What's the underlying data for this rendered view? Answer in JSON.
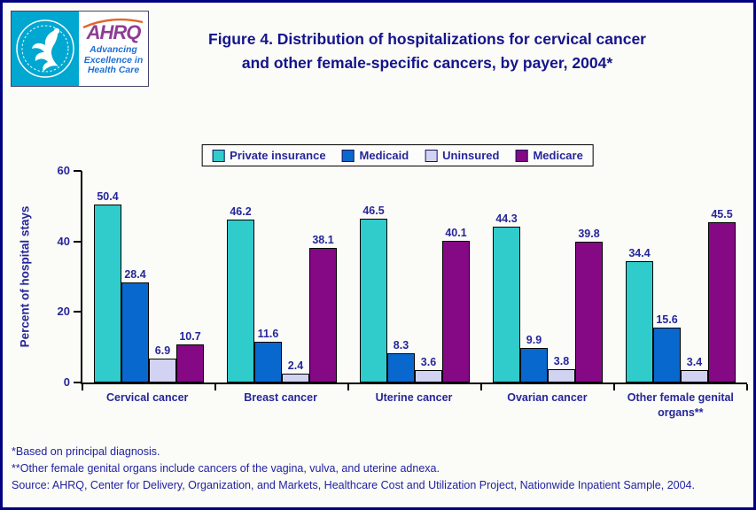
{
  "header": {
    "logo": {
      "acronym": "AHRQ",
      "tagline_line1": "Advancing",
      "tagline_line2": "Excellence in",
      "tagline_line3": "Health Care"
    },
    "title_line1": "Figure 4. Distribution of hospitalizations for cervical cancer",
    "title_line2": "and other female-specific cancers, by payer, 2004*"
  },
  "chart_data": {
    "type": "bar",
    "title": "Figure 4. Distribution of hospitalizations for cervical cancer and other female-specific cancers, by payer, 2004*",
    "xlabel": "",
    "ylabel": "Percent of hospital stays",
    "ylim": [
      0,
      60
    ],
    "yticks": [
      0,
      20,
      40,
      60
    ],
    "grid": false,
    "legend_position": "top",
    "categories": [
      "Cervical cancer",
      "Breast cancer",
      "Uterine cancer",
      "Ovarian cancer",
      "Other female genital organs**"
    ],
    "series": [
      {
        "name": "Private insurance",
        "color": "#30CBCB",
        "values": [
          50.4,
          46.2,
          46.5,
          44.3,
          34.4
        ]
      },
      {
        "name": "Medicaid",
        "color": "#0968CE",
        "values": [
          28.4,
          11.6,
          8.3,
          9.9,
          15.6
        ]
      },
      {
        "name": "Uninsured",
        "color": "#D2D2F2",
        "values": [
          6.9,
          2.4,
          3.6,
          3.8,
          3.4
        ]
      },
      {
        "name": "Medicare",
        "color": "#850885",
        "values": [
          10.7,
          38.1,
          40.1,
          39.8,
          45.5
        ]
      }
    ]
  },
  "footnotes": {
    "line1": "*Based on principal diagnosis.",
    "line2": "**Other female genital organs include cancers of the vagina, vulva, and uterine adnexa.",
    "line3": "Source: AHRQ, Center for Delivery, Organization, and Markets, Healthcare Cost and Utilization Project, Nationwide Inpatient Sample, 2004."
  },
  "colors": {
    "frame_border": "#000080",
    "text_navy": "#26269B",
    "title_navy": "#14148C",
    "logo_cyan": "#00A7D1",
    "ahrq_purple": "#8E3D94",
    "tagline_blue": "#1F6FD0",
    "swoosh_orange": "#E1662A"
  }
}
